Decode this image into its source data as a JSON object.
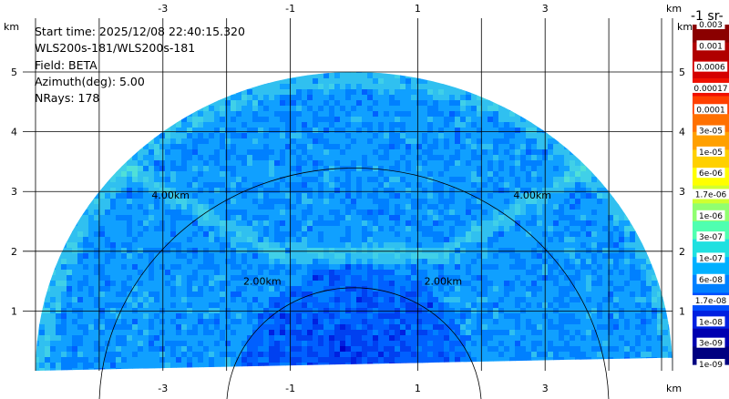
{
  "info": {
    "start_time": "Start time: 2025/12/08 22:40:15.320",
    "instrument": "WLS200s-181/WLS200s-181",
    "field": "Field: BETA",
    "azimuth": "Azimuth(deg): 5.00",
    "nrays": "NRays: 178"
  },
  "colorbar": {
    "title": "-1 sr-",
    "labels": [
      "0.003",
      "0.001",
      "0.0006",
      "0.00017",
      "0.0001",
      "3e-05",
      "1e-05",
      "6e-06",
      "1.7e-06",
      "1e-06",
      "3e-07",
      "1e-07",
      "6e-08",
      "1.7e-08",
      "1e-08",
      "3e-09",
      "1e-09"
    ],
    "colors": [
      "#8b0000",
      "#b00000",
      "#d40000",
      "#f01000",
      "#ff4000",
      "#ff7000",
      "#ffa000",
      "#ffd000",
      "#ffff00",
      "#d0ff30",
      "#90ff70",
      "#50ffb0",
      "#20e0e0",
      "#00b0ff",
      "#0080ff",
      "#0050ff",
      "#0020e0",
      "#0000b0",
      "#000080"
    ]
  },
  "chart_data": {
    "type": "heatmap",
    "title": "",
    "field": "BETA",
    "xlabel": "km",
    "ylabel": "km",
    "xlim": [
      -5.2,
      5.0
    ],
    "ylim": [
      0,
      5.9
    ],
    "x_ticks": [
      "-3",
      "-1",
      "1",
      "3"
    ],
    "y_ticks": [
      "1",
      "2",
      "3",
      "4",
      "5"
    ],
    "range_rings": [
      {
        "radius_km": 2.0,
        "label": "2.00km"
      },
      {
        "radius_km": 4.0,
        "label": "4.00km"
      }
    ],
    "max_range_km": 5.0,
    "elevation_span_deg": [
      0,
      180
    ],
    "nrays": 178,
    "features": [
      {
        "name": "layer_at_2km",
        "description": "enhanced backscatter band",
        "height_km": 2.0
      }
    ],
    "colormap_range": [
      "1e-09",
      "0.003"
    ]
  }
}
